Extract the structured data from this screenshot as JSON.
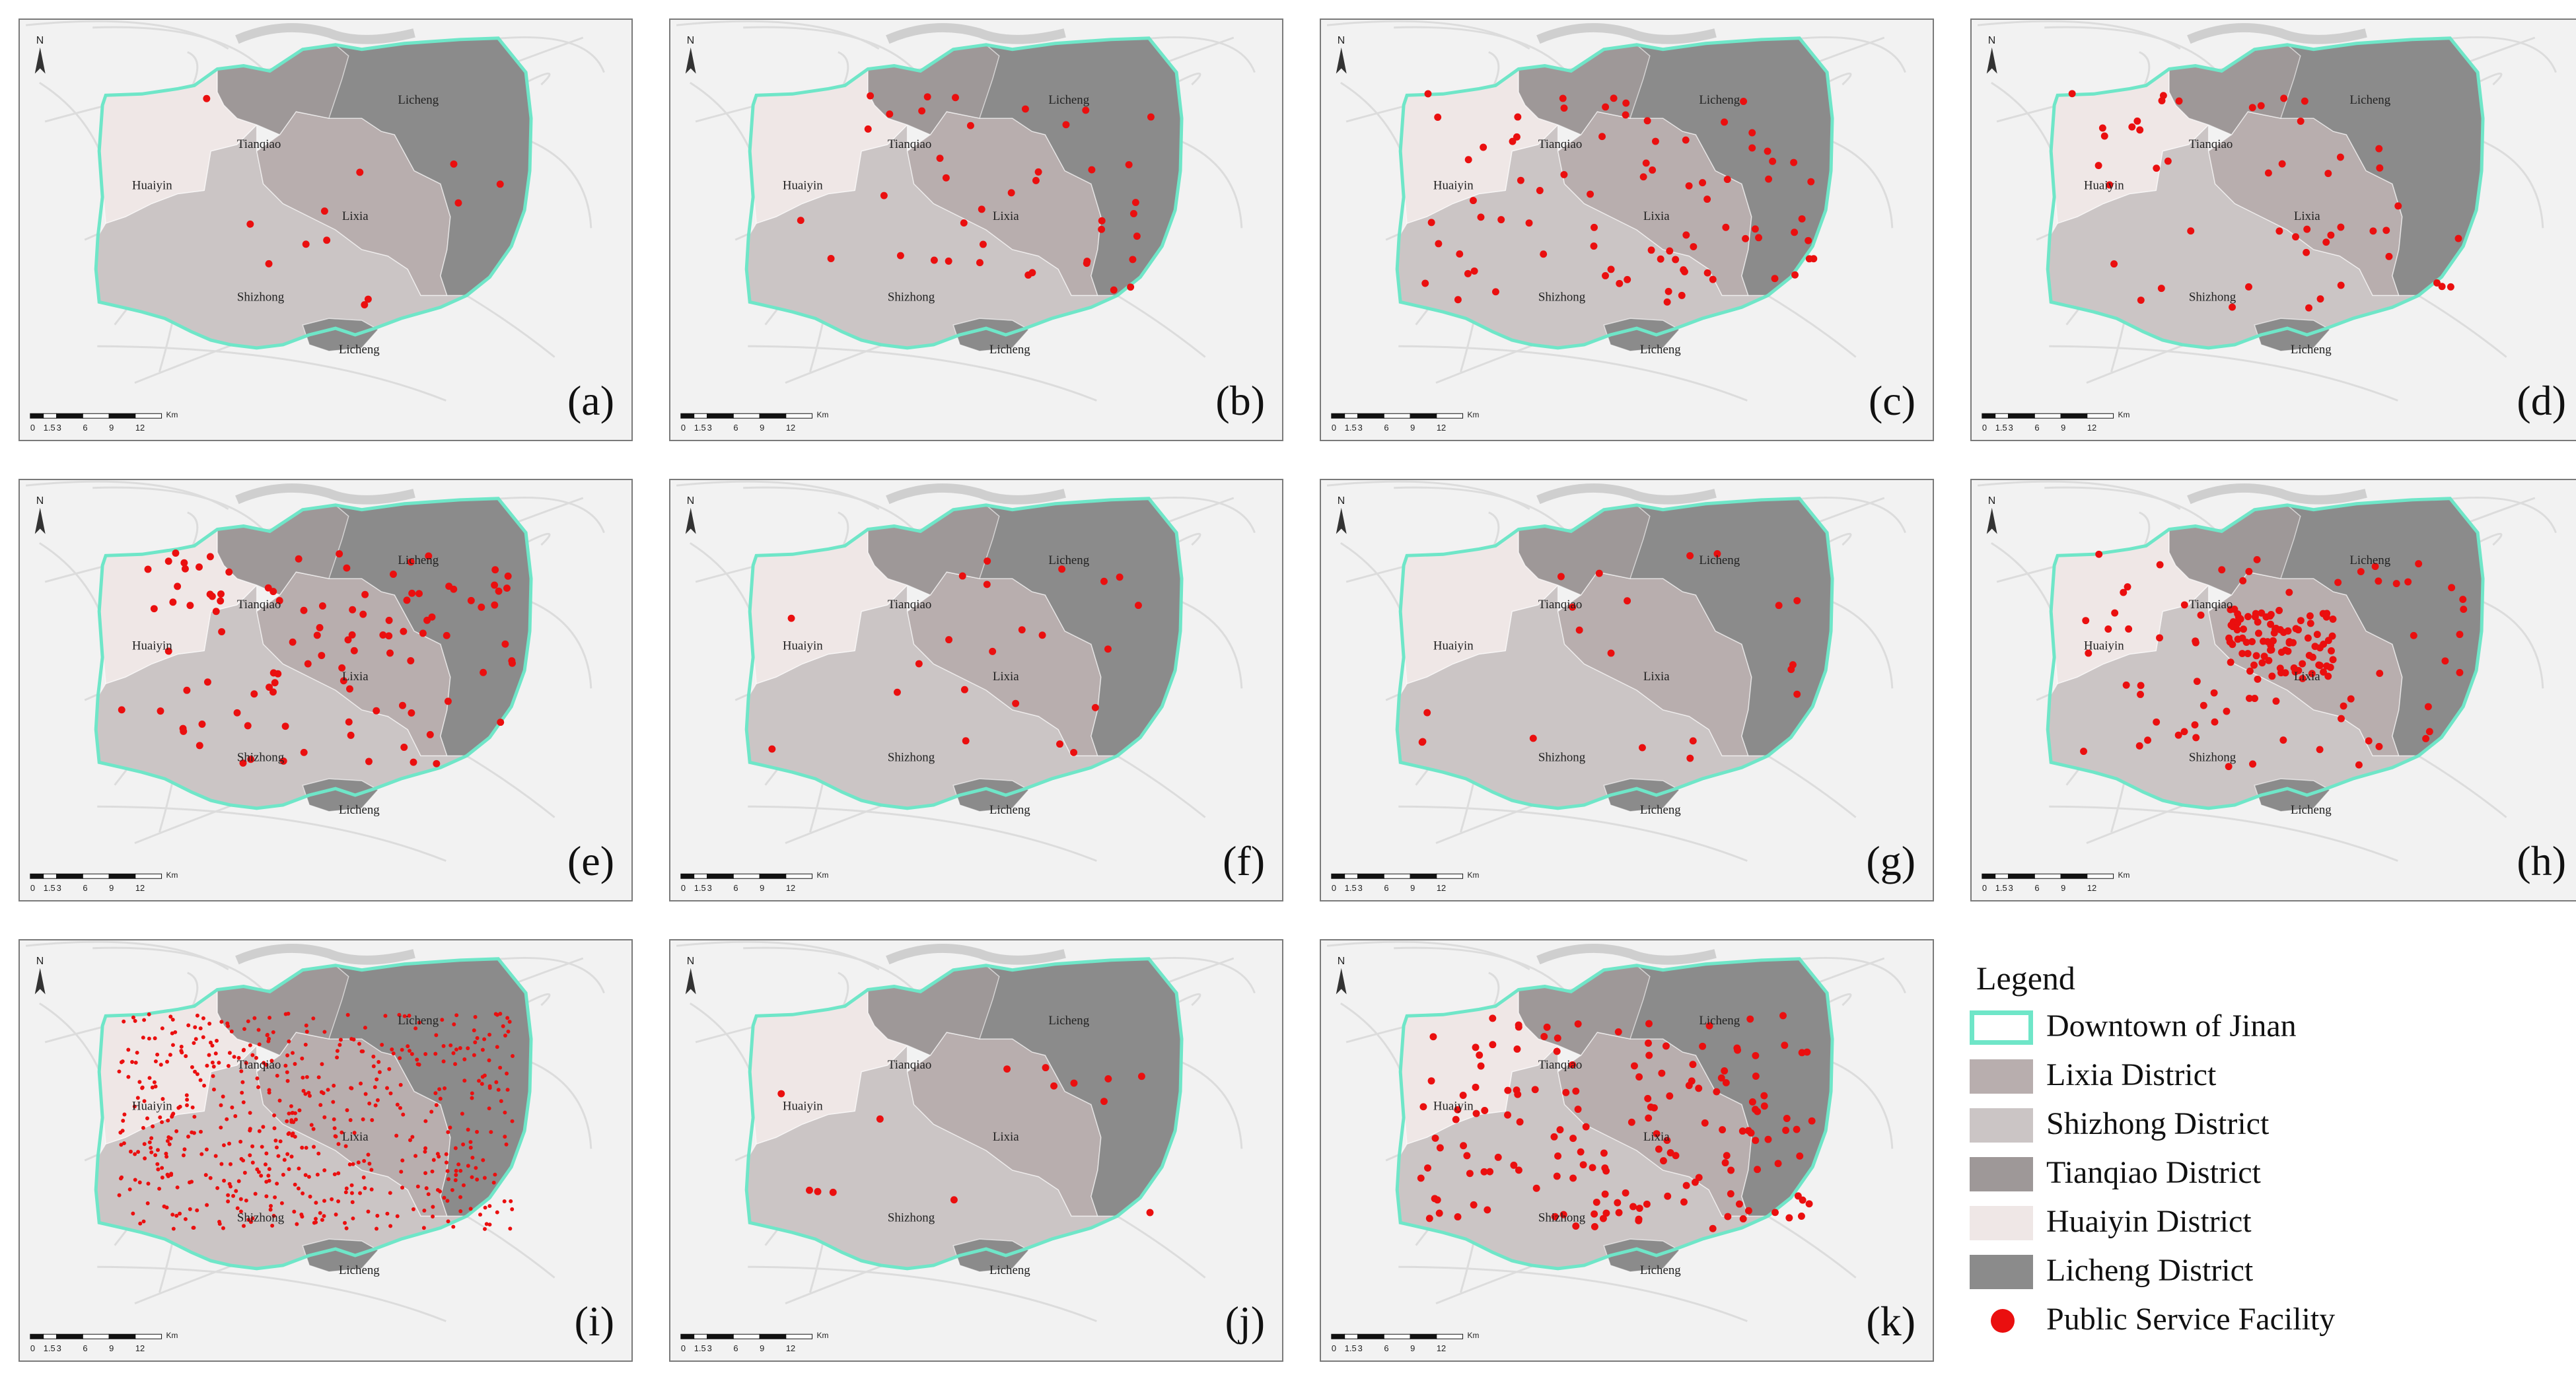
{
  "colors": {
    "boundary": "#6fe6c8",
    "lixia": "#b8aeae",
    "shizhong": "#cbc5c5",
    "tianqiao": "#9e9898",
    "huaiyin": "#efe7e6",
    "licheng": "#8b8b8b",
    "facility": "#ea0f0f",
    "basemap": "#f2f2f2",
    "roads": "#dcdcdc"
  },
  "district_labels": {
    "tianqiao": "Tianqiao",
    "licheng_north": "Licheng",
    "huaiyin": "Huaiyin",
    "lixia": "Lixia",
    "shizhong": "Shizhong",
    "licheng_south": "Licheng"
  },
  "north_arrow_label": "N",
  "scale_bar": {
    "ticks": [
      "0",
      "1.5",
      "3",
      "6",
      "9",
      "12"
    ],
    "unit": "Km"
  },
  "panels": [
    {
      "label": "(a)",
      "density": 0.3
    },
    {
      "label": "(b)",
      "density": 1.0
    },
    {
      "label": "(c)",
      "density": 2.0
    },
    {
      "label": "(d)",
      "density": 1.2
    },
    {
      "label": "(e)",
      "density": 2.6
    },
    {
      "label": "(f)",
      "density": 0.55
    },
    {
      "label": "(g)",
      "density": 0.5
    },
    {
      "label": "(h)",
      "density": 4.0
    },
    {
      "label": "(i)",
      "density": 14.0
    },
    {
      "label": "(j)",
      "density": 0.35
    },
    {
      "label": "(k)",
      "density": 4.0
    }
  ],
  "legend": {
    "title": "Legend",
    "items": [
      {
        "label": "Downtown of Jinan",
        "kind": "outline",
        "color_key": "boundary"
      },
      {
        "label": "Lixia District",
        "kind": "fill",
        "color_key": "lixia"
      },
      {
        "label": "Shizhong District",
        "kind": "fill",
        "color_key": "shizhong"
      },
      {
        "label": "Tianqiao District",
        "kind": "fill",
        "color_key": "tianqiao"
      },
      {
        "label": "Huaiyin District",
        "kind": "fill",
        "color_key": "huaiyin"
      },
      {
        "label": "Licheng District",
        "kind": "fill",
        "color_key": "licheng"
      },
      {
        "label": "Public Service Facility",
        "kind": "dot",
        "color_key": "facility"
      }
    ]
  }
}
